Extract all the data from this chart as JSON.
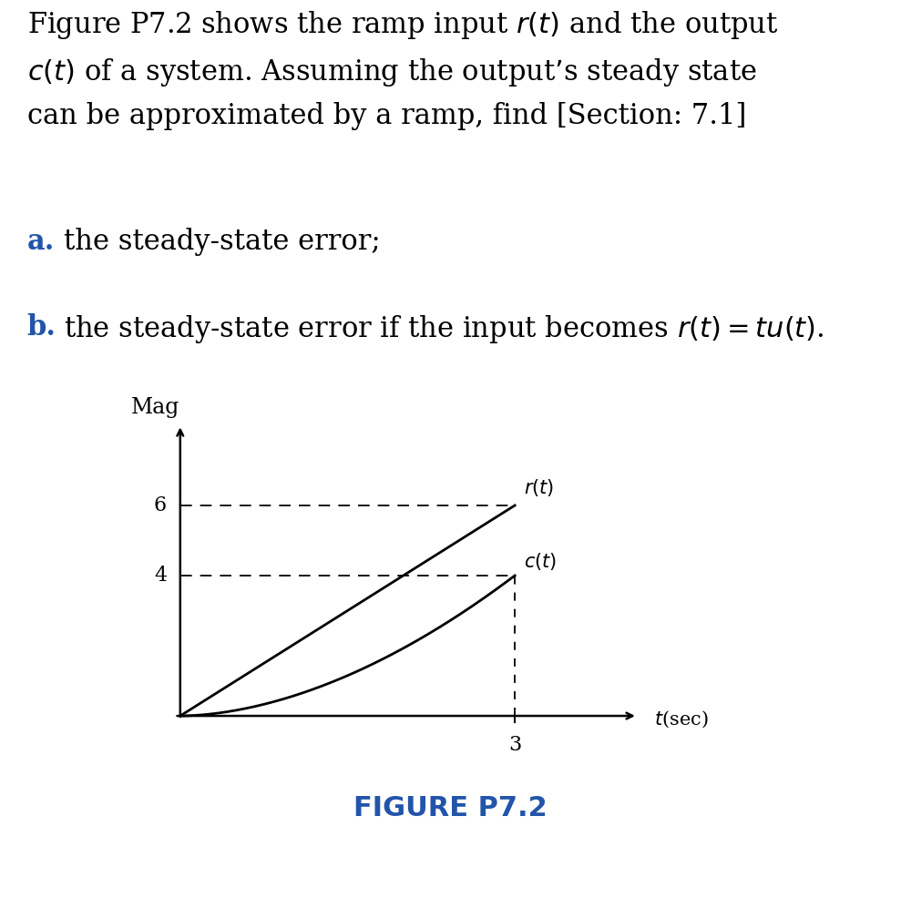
{
  "paragraph": "Figure P7.2 shows the ramp input $r(t)$ and the output\n$c(t)$ of a system. Assuming the output’s steady state\ncan be approximated by a ramp, find [Section: 7.1]",
  "item_a_bold": "a.",
  "item_a_text": "the steady-state error;",
  "item_b_bold": "b.",
  "item_b_text": "the steady-state error if the input becomes $r(t) = tu(t)$.",
  "ylabel": "Mag",
  "xlabel": "$t$(sec)",
  "ytick_vals": [
    4,
    6
  ],
  "xtick_val": 3,
  "figure_caption": "FIGURE P7.2",
  "caption_color": "#2255aa",
  "ab_color": "#2255aa",
  "r_label": "$r(t)$",
  "c_label": "$c(t)$",
  "bg_color": "#ffffff",
  "line_color": "#000000",
  "xlim": [
    0,
    4.2
  ],
  "ylim": [
    -0.3,
    8.5
  ],
  "r_end_x": 3,
  "r_end_y": 6,
  "c_end_x": 3,
  "c_end_y": 4
}
